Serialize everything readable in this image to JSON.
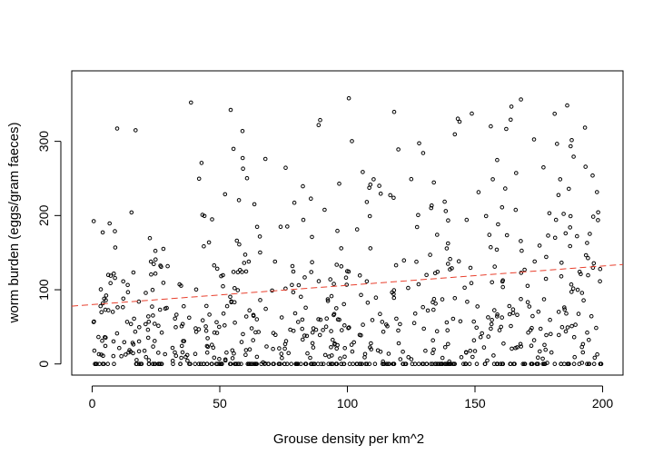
{
  "chart_data": {
    "type": "scatter",
    "title": "",
    "xlabel": "Grouse density per km^2",
    "ylabel": "worm burden (eggs/gram faeces)",
    "xlim": [
      -8,
      208
    ],
    "ylim": [
      -15,
      395
    ],
    "xticks": [
      0,
      50,
      100,
      150,
      200
    ],
    "yticks": [
      0,
      100,
      200,
      300
    ],
    "xtick_labels": [
      "0",
      "50",
      "100",
      "150",
      "200"
    ],
    "ytick_labels": [
      "0",
      "100",
      "200",
      "300"
    ],
    "grid": false,
    "legend": "none",
    "point_color": "#000000",
    "trend_color": "#e8402e",
    "trend_line": {
      "intercept": 80,
      "slope": 0.26
    },
    "n_points": 800,
    "zero_count": 215,
    "max_y": 383
  }
}
